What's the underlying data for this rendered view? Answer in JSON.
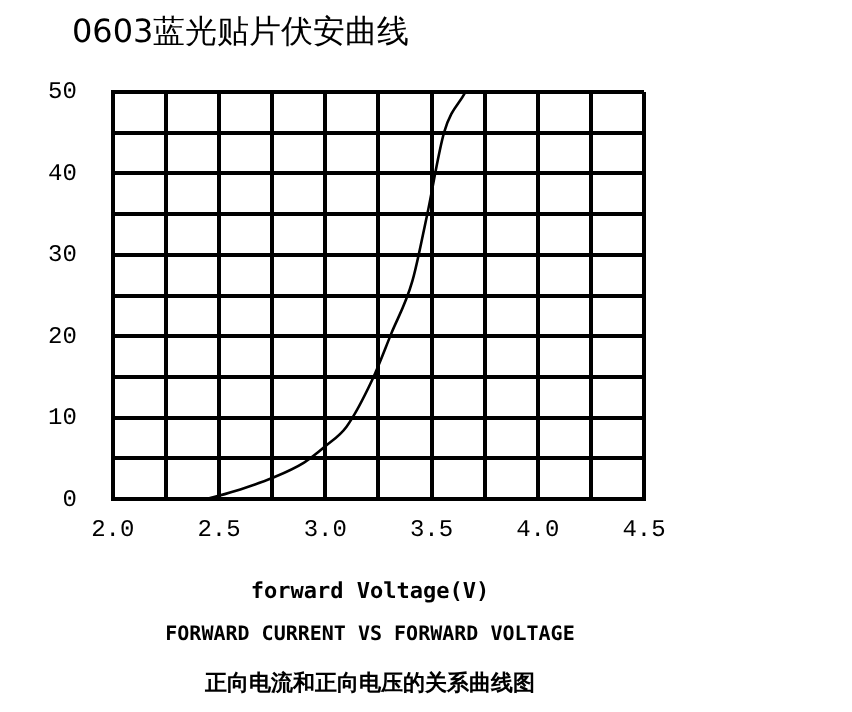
{
  "chart_data": {
    "type": "line",
    "title": "0603蓝光贴片伏安曲线",
    "xlabel": "forward Voltage(V)",
    "annotations": [
      "FORWARD CURRENT VS FORWARD VOLTAGE",
      "正向电流和正向电压的关系曲线图"
    ],
    "x": [
      2.44,
      2.6,
      2.75,
      2.9,
      3.0,
      3.1,
      3.22,
      3.31,
      3.41,
      3.48,
      3.56,
      3.66
    ],
    "series": [
      {
        "color": "#000000",
        "values": [
          0,
          1.2,
          2.6,
          4.5,
          6.5,
          8.9,
          14.6,
          20.3,
          26.8,
          35,
          45.1,
          50
        ]
      }
    ],
    "xlim": [
      2.0,
      4.5
    ],
    "xticks": [
      {
        "value": 2.0,
        "label": "2.0"
      },
      {
        "value": 2.25,
        "label": null
      },
      {
        "value": 2.5,
        "label": "2.5"
      },
      {
        "value": 2.75,
        "label": null
      },
      {
        "value": 3.0,
        "label": "3.0"
      },
      {
        "value": 3.25,
        "label": null
      },
      {
        "value": 3.5,
        "label": "3.5"
      },
      {
        "value": 3.75,
        "label": null
      },
      {
        "value": 4.0,
        "label": "4.0"
      },
      {
        "value": 4.25,
        "label": null
      },
      {
        "value": 4.5,
        "label": "4.5"
      }
    ],
    "ylim": [
      0,
      50
    ],
    "yticks": [
      0,
      {
        "value": 5,
        "label": null
      },
      10,
      {
        "value": 15,
        "label": null
      },
      20,
      {
        "value": 25,
        "label": null
      },
      30,
      {
        "value": 35,
        "label": null
      },
      40,
      {
        "value": 45,
        "label": null
      },
      50
    ],
    "grid": true,
    "legend": false,
    "marker": "none",
    "line_style": "solid"
  }
}
